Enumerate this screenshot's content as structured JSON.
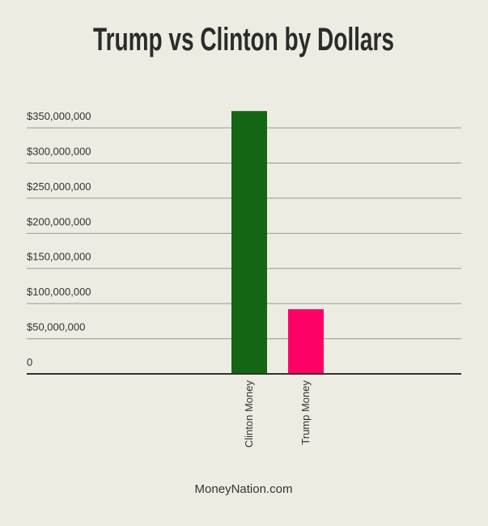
{
  "chart_data": {
    "type": "bar",
    "title": "Trump vs Clinton by Dollars",
    "categories": [
      "Clinton Money",
      "Trump Money"
    ],
    "values": [
      374000000,
      92000000
    ],
    "colors": [
      "#146614",
      "#ff0066"
    ],
    "ylim": [
      0,
      380000000
    ],
    "yticks": [
      0,
      {
        "value": 50000000,
        "label": "$50,000,000"
      },
      {
        "value": 100000000,
        "label": "$100,000,000"
      },
      {
        "value": 150000000,
        "label": "$150,000,000"
      },
      {
        "value": 200000000,
        "label": "$200,000,000"
      },
      {
        "value": 250000000,
        "label": "$250,000,000"
      },
      {
        "value": 300000000,
        "label": "$300,000,000"
      },
      {
        "value": 350000000,
        "label": "$350,000,000"
      }
    ],
    "grid": true,
    "source": "MoneyNation.com"
  }
}
